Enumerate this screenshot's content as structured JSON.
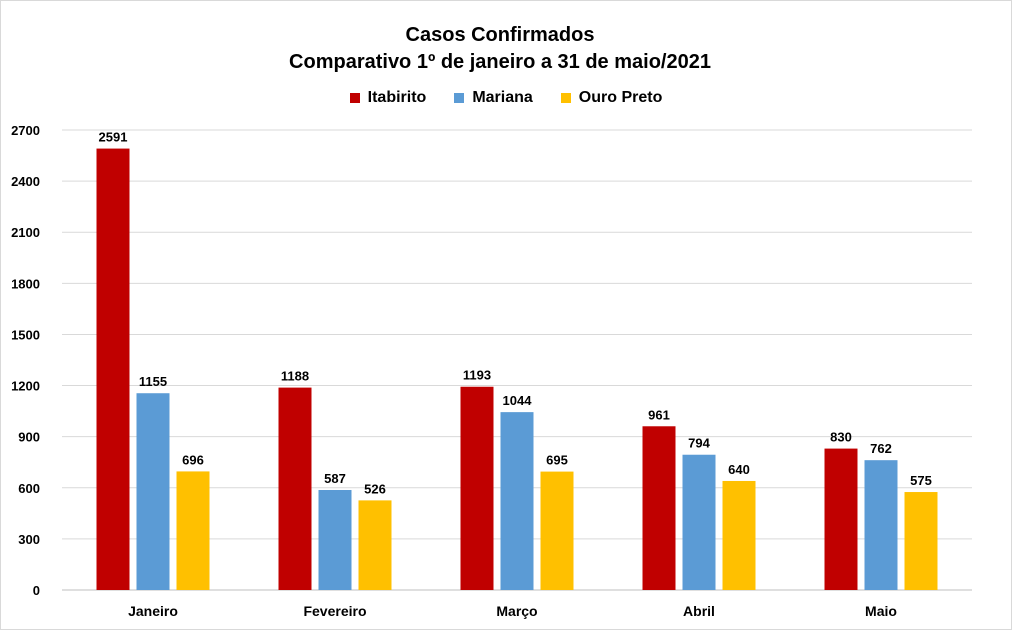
{
  "chart_data": {
    "type": "bar",
    "title": "Casos Confirmados",
    "subtitle": "Comparativo 1º de janeiro a 31 de maio/2021",
    "xlabel": "",
    "ylabel": "",
    "ylim": [
      0,
      2700
    ],
    "yticks": [
      0,
      300,
      600,
      900,
      1200,
      1500,
      1800,
      2100,
      2400,
      2700
    ],
    "grid": true,
    "legend_position": "top",
    "categories": [
      "Janeiro",
      "Fevereiro",
      "Março",
      "Abril",
      "Maio"
    ],
    "series": [
      {
        "name": "Itabirito",
        "color": "#c00000",
        "values": [
          2591,
          1188,
          1193,
          961,
          830
        ]
      },
      {
        "name": "Mariana",
        "color": "#5b9bd5",
        "values": [
          1155,
          587,
          1044,
          794,
          762
        ]
      },
      {
        "name": "Ouro Preto",
        "color": "#ffc000",
        "values": [
          696,
          526,
          695,
          640,
          575
        ]
      }
    ]
  }
}
